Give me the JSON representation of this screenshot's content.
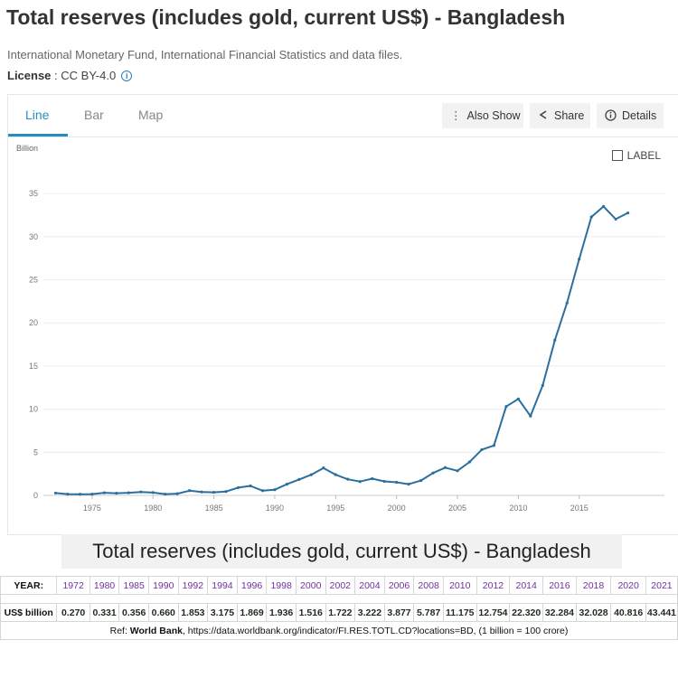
{
  "page": {
    "title": "Total reserves (includes gold, current US$) - Bangladesh",
    "source": "International Monetary Fund, International Financial Statistics and data files.",
    "license_label": "License",
    "license_sep": " : ",
    "license_value": "CC BY-4.0"
  },
  "tabs": [
    {
      "label": "Line",
      "active": true
    },
    {
      "label": "Bar",
      "active": false
    },
    {
      "label": "Map",
      "active": false
    }
  ],
  "toolbar": {
    "also_show": "Also Show",
    "share": "Share",
    "details": "Details"
  },
  "label_toggle": "LABEL",
  "chart_data": {
    "type": "line",
    "ylabel": "Billion",
    "ylim": [
      0,
      37
    ],
    "xlim": [
      1971,
      2022
    ],
    "yticks": [
      0,
      5,
      10,
      15,
      20,
      25,
      30,
      35
    ],
    "xticks": [
      1975,
      1980,
      1985,
      1990,
      1995,
      2000,
      2005,
      2010,
      2015
    ],
    "grid": true,
    "color": "#2b6f9e",
    "x": [
      1972,
      1973,
      1974,
      1975,
      1976,
      1977,
      1978,
      1979,
      1980,
      1981,
      1982,
      1983,
      1984,
      1985,
      1986,
      1987,
      1988,
      1989,
      1990,
      1991,
      1992,
      1993,
      1994,
      1995,
      1996,
      1997,
      1998,
      1999,
      2000,
      2001,
      2002,
      2003,
      2004,
      2005,
      2006,
      2007,
      2008,
      2009,
      2010,
      2011,
      2012,
      2013,
      2014,
      2015,
      2016,
      2017,
      2018,
      2019
    ],
    "y": [
      0.27,
      0.15,
      0.14,
      0.15,
      0.3,
      0.25,
      0.3,
      0.4,
      0.33,
      0.15,
      0.2,
      0.55,
      0.4,
      0.36,
      0.45,
      0.9,
      1.1,
      0.55,
      0.66,
      1.3,
      1.85,
      2.4,
      3.18,
      2.4,
      1.87,
      1.6,
      1.94,
      1.62,
      1.52,
      1.3,
      1.72,
      2.6,
      3.22,
      2.85,
      3.88,
      5.3,
      5.79,
      10.3,
      11.18,
      9.2,
      12.75,
      18.0,
      22.32,
      27.4,
      32.28,
      33.5,
      32.03,
      32.75
    ]
  },
  "table": {
    "title": "Total reserves (includes gold, current US$) - Bangladesh",
    "year_label": "YEAR:",
    "value_label": "US$ billion",
    "years": [
      "1972",
      "1980",
      "1985",
      "1990",
      "1992",
      "1994",
      "1996",
      "1998",
      "2000",
      "2002",
      "2004",
      "2006",
      "2008",
      "2010",
      "2012",
      "2014",
      "2016",
      "2018",
      "2020",
      "2021"
    ],
    "values": [
      "0.270",
      "0.331",
      "0.356",
      "0.660",
      "1.853",
      "3.175",
      "1.869",
      "1.936",
      "1.516",
      "1.722",
      "3.222",
      "3.877",
      "5.787",
      "11.175",
      "12.754",
      "22.320",
      "32.284",
      "32.028",
      "40.816",
      "43.441"
    ],
    "ref_prefix": "Ref: ",
    "ref_source": "World Bank",
    "ref_rest": ", https://data.worldbank.org/indicator/FI.RES.TOTL.CD?locations=BD, (1 billion = 100 crore)"
  }
}
